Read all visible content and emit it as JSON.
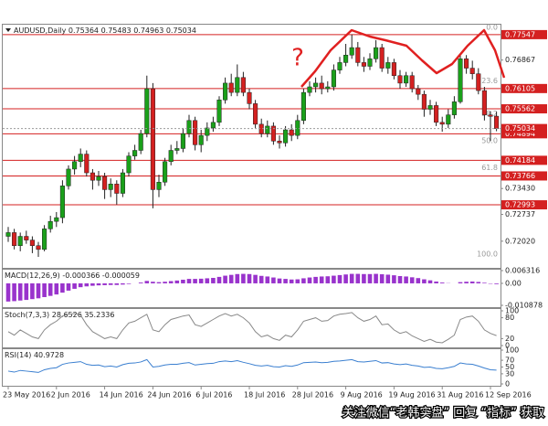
{
  "chart_data": [
    {
      "type": "candlestick",
      "title": "AUDUSD,Daily",
      "annotation": "?",
      "categories": [
        "23 May 2016",
        null,
        null,
        null,
        null,
        null,
        null,
        null,
        "2 Jun 2016",
        null,
        null,
        null,
        null,
        null,
        null,
        null,
        "14 Jun 2016",
        null,
        null,
        null,
        null,
        null,
        null,
        null,
        "24 Jun 2016",
        null,
        null,
        null,
        null,
        null,
        null,
        null,
        "6 Jul 2016",
        null,
        null,
        null,
        null,
        null,
        null,
        null,
        "18 Jul 2016",
        null,
        null,
        null,
        null,
        null,
        null,
        null,
        "28 Jul 2016",
        null,
        null,
        null,
        null,
        null,
        null,
        null,
        "9 Aug 2016",
        null,
        null,
        null,
        null,
        null,
        null,
        null,
        "19 Aug 2016",
        null,
        null,
        null,
        null,
        null,
        null,
        null,
        "31 Aug 2016",
        null,
        null,
        null,
        null,
        null,
        null,
        null,
        "12 Sep 2016",
        null
      ],
      "open": [
        0.7215,
        0.7225,
        0.719,
        0.7215,
        0.7205,
        0.719,
        0.718,
        0.7235,
        0.7255,
        0.7265,
        0.735,
        0.7395,
        0.7415,
        0.7435,
        0.7385,
        0.7365,
        0.7375,
        0.734,
        0.7355,
        0.733,
        0.7385,
        0.743,
        0.7445,
        0.749,
        0.761,
        0.734,
        0.736,
        0.7415,
        0.7445,
        0.745,
        0.749,
        0.7525,
        0.746,
        0.7485,
        0.7505,
        0.752,
        0.758,
        0.7625,
        0.76,
        0.764,
        0.76,
        0.757,
        0.7515,
        0.749,
        0.751,
        0.747,
        0.7465,
        0.75,
        0.7485,
        0.7525,
        0.76,
        0.7615,
        0.7625,
        0.761,
        0.7615,
        0.766,
        0.768,
        0.77,
        0.772,
        0.768,
        0.767,
        0.769,
        0.772,
        0.7665,
        0.768,
        0.7645,
        0.7625,
        0.7645,
        0.761,
        0.7595,
        0.7555,
        0.7565,
        0.752,
        0.7515,
        0.754,
        0.7575,
        0.769,
        0.7665,
        0.765,
        0.7605,
        0.754,
        0.75364
      ],
      "high": [
        0.724,
        0.7235,
        0.7225,
        0.723,
        0.7215,
        0.72,
        0.7245,
        0.727,
        0.728,
        0.7365,
        0.7405,
        0.743,
        0.745,
        0.7445,
        0.7395,
        0.739,
        0.7385,
        0.737,
        0.7365,
        0.7395,
        0.744,
        0.746,
        0.75,
        0.7645,
        0.7625,
        0.738,
        0.7425,
        0.746,
        0.747,
        0.7505,
        0.754,
        0.7535,
        0.75,
        0.752,
        0.7535,
        0.759,
        0.764,
        0.765,
        0.7675,
        0.7655,
        0.761,
        0.758,
        0.753,
        0.7525,
        0.752,
        0.7485,
        0.751,
        0.7515,
        0.754,
        0.761,
        0.763,
        0.764,
        0.7645,
        0.763,
        0.7675,
        0.7695,
        0.773,
        0.7755,
        0.7735,
        0.7695,
        0.7705,
        0.774,
        0.773,
        0.7695,
        0.769,
        0.766,
        0.7655,
        0.7655,
        0.762,
        0.7605,
        0.758,
        0.7575,
        0.7535,
        0.7555,
        0.759,
        0.7705,
        0.77,
        0.7685,
        0.7665,
        0.7615,
        0.755,
        0.75483
      ],
      "low": [
        0.72,
        0.718,
        0.7175,
        0.7195,
        0.717,
        0.716,
        0.7175,
        0.7225,
        0.724,
        0.725,
        0.734,
        0.738,
        0.74,
        0.7375,
        0.734,
        0.735,
        0.7315,
        0.732,
        0.73,
        0.732,
        0.7375,
        0.742,
        0.7435,
        0.748,
        0.729,
        0.732,
        0.735,
        0.7405,
        0.7435,
        0.744,
        0.748,
        0.7445,
        0.744,
        0.747,
        0.7495,
        0.751,
        0.757,
        0.759,
        0.759,
        0.759,
        0.7555,
        0.7505,
        0.748,
        0.748,
        0.746,
        0.745,
        0.7455,
        0.747,
        0.7475,
        0.7515,
        0.759,
        0.76,
        0.7595,
        0.76,
        0.7605,
        0.765,
        0.767,
        0.769,
        0.767,
        0.7655,
        0.766,
        0.768,
        0.7655,
        0.765,
        0.7635,
        0.761,
        0.7615,
        0.76,
        0.758,
        0.7535,
        0.754,
        0.751,
        0.7495,
        0.7505,
        0.753,
        0.757,
        0.765,
        0.7635,
        0.7595,
        0.7525,
        0.747,
        0.74963
      ],
      "close": [
        0.7225,
        0.719,
        0.7215,
        0.7205,
        0.719,
        0.718,
        0.7235,
        0.7255,
        0.7265,
        0.735,
        0.7395,
        0.7415,
        0.7435,
        0.7385,
        0.7365,
        0.7375,
        0.734,
        0.7355,
        0.733,
        0.7385,
        0.743,
        0.7445,
        0.749,
        0.761,
        0.734,
        0.736,
        0.7415,
        0.7445,
        0.745,
        0.749,
        0.7525,
        0.746,
        0.7485,
        0.7505,
        0.752,
        0.758,
        0.7625,
        0.76,
        0.764,
        0.76,
        0.757,
        0.7515,
        0.749,
        0.751,
        0.747,
        0.7465,
        0.75,
        0.7485,
        0.7525,
        0.76,
        0.7615,
        0.7625,
        0.761,
        0.7615,
        0.766,
        0.768,
        0.77,
        0.772,
        0.768,
        0.767,
        0.769,
        0.772,
        0.7665,
        0.768,
        0.7645,
        0.7625,
        0.7645,
        0.761,
        0.7595,
        0.7555,
        0.7565,
        0.752,
        0.7515,
        0.754,
        0.7575,
        0.769,
        0.7665,
        0.765,
        0.7605,
        0.754,
        0.7536,
        0.75034
      ],
      "up_color": "#1aa01a",
      "down_color": "#d42020",
      "ylim": [
        0.7138,
        0.7774
      ],
      "yticks": [
        0.76867,
        {
          "value": 0.7343,
          "label": "0.73430"
        },
        0.72737,
        {
          "value": 0.7202,
          "label": "0.72020"
        }
      ],
      "levels": [
        0.77547,
        0.76105,
        0.75562,
        0.74894,
        0.74184,
        0.73766,
        0.72993
      ],
      "level_color": "#d42020",
      "fib_range": [
        0.77645,
        0.71573
      ],
      "fib_levels": [
        {
          "value": 0,
          "label": "0.0"
        },
        23.6,
        38.2,
        {
          "value": 50,
          "label": "50.0"
        },
        61.8,
        {
          "value": 100,
          "label": "100.0"
        }
      ]
    },
    {
      "type": "bar",
      "title": "MACD(12,26,9)",
      "signal_value": -5.9e-05,
      "color": "#9933cc",
      "values": [
        -0.009,
        -0.0088,
        -0.0085,
        -0.0082,
        -0.0078,
        -0.0074,
        -0.0068,
        -0.0062,
        -0.0055,
        -0.0046,
        -0.0036,
        -0.0027,
        -0.0019,
        -0.0015,
        -0.0012,
        -0.001,
        -0.0009,
        -0.0008,
        -0.0008,
        -0.0006,
        -0.0003,
        0.0,
        0.0004,
        0.0012,
        0.0008,
        0.0006,
        0.0008,
        0.0011,
        0.0014,
        0.0018,
        0.0022,
        0.0022,
        0.0023,
        0.0025,
        0.0027,
        0.0032,
        0.0038,
        0.0042,
        0.0046,
        0.0047,
        0.0046,
        0.0042,
        0.0037,
        0.0034,
        0.0029,
        0.0024,
        0.0022,
        0.0019,
        0.002,
        0.0025,
        0.0029,
        0.0032,
        0.0034,
        0.0035,
        0.0038,
        0.0041,
        0.0044,
        0.0047,
        0.0047,
        0.0046,
        0.0046,
        0.0047,
        0.0045,
        0.0043,
        0.004,
        0.0036,
        0.0034,
        0.003,
        0.0026,
        0.002,
        0.0015,
        0.0009,
        0.0004,
        0.0001,
        0.0,
        0.0006,
        0.0008,
        0.0009,
        0.0007,
        0.0003,
        -0.0002,
        -0.000366
      ],
      "ylim": [
        -0.010878,
        0.006316
      ],
      "yticks": [
        0.006316,
        {
          "value": 0,
          "label": "0.00"
        },
        -0.010878
      ]
    },
    {
      "type": "line",
      "title": "Stoch(7,3,3)",
      "signal_value": 35.2336,
      "color": "#888888",
      "values": [
        40,
        30,
        45,
        35,
        25,
        20,
        45,
        60,
        70,
        85,
        90,
        92,
        88,
        60,
        40,
        30,
        20,
        25,
        20,
        45,
        65,
        70,
        80,
        90,
        45,
        40,
        60,
        75,
        80,
        85,
        88,
        60,
        55,
        65,
        75,
        85,
        92,
        85,
        90,
        80,
        65,
        40,
        25,
        30,
        20,
        15,
        30,
        25,
        45,
        70,
        75,
        80,
        70,
        72,
        85,
        90,
        92,
        95,
        80,
        70,
        75,
        85,
        60,
        62,
        45,
        35,
        40,
        28,
        20,
        12,
        18,
        10,
        8,
        18,
        30,
        75,
        82,
        85,
        70,
        45,
        35,
        28.6526
      ],
      "ylim": [
        0,
        100
      ],
      "yticks": [
        100,
        80,
        20,
        0
      ]
    },
    {
      "type": "line",
      "title": "RSI(14)",
      "color": "#3a7fd0",
      "values": [
        38,
        35,
        40,
        38,
        36,
        34,
        42,
        46,
        48,
        58,
        62,
        64,
        66,
        58,
        55,
        56,
        51,
        53,
        50,
        57,
        61,
        62,
        65,
        72,
        50,
        52,
        56,
        58,
        58,
        61,
        63,
        56,
        58,
        60,
        61,
        66,
        68,
        66,
        69,
        64,
        60,
        55,
        53,
        55,
        51,
        50,
        54,
        52,
        56,
        63,
        64,
        65,
        63,
        64,
        67,
        68,
        70,
        72,
        66,
        65,
        67,
        69,
        62,
        63,
        59,
        57,
        59,
        55,
        53,
        49,
        50,
        46,
        45,
        48,
        52,
        62,
        59,
        58,
        53,
        47,
        42,
        40.9728
      ],
      "ylim": [
        0,
        100
      ],
      "yticks": [
        100,
        70,
        50,
        30,
        0
      ]
    }
  ],
  "watermark": "关注微信“老韩实盘” 回复 “指标” 获取"
}
